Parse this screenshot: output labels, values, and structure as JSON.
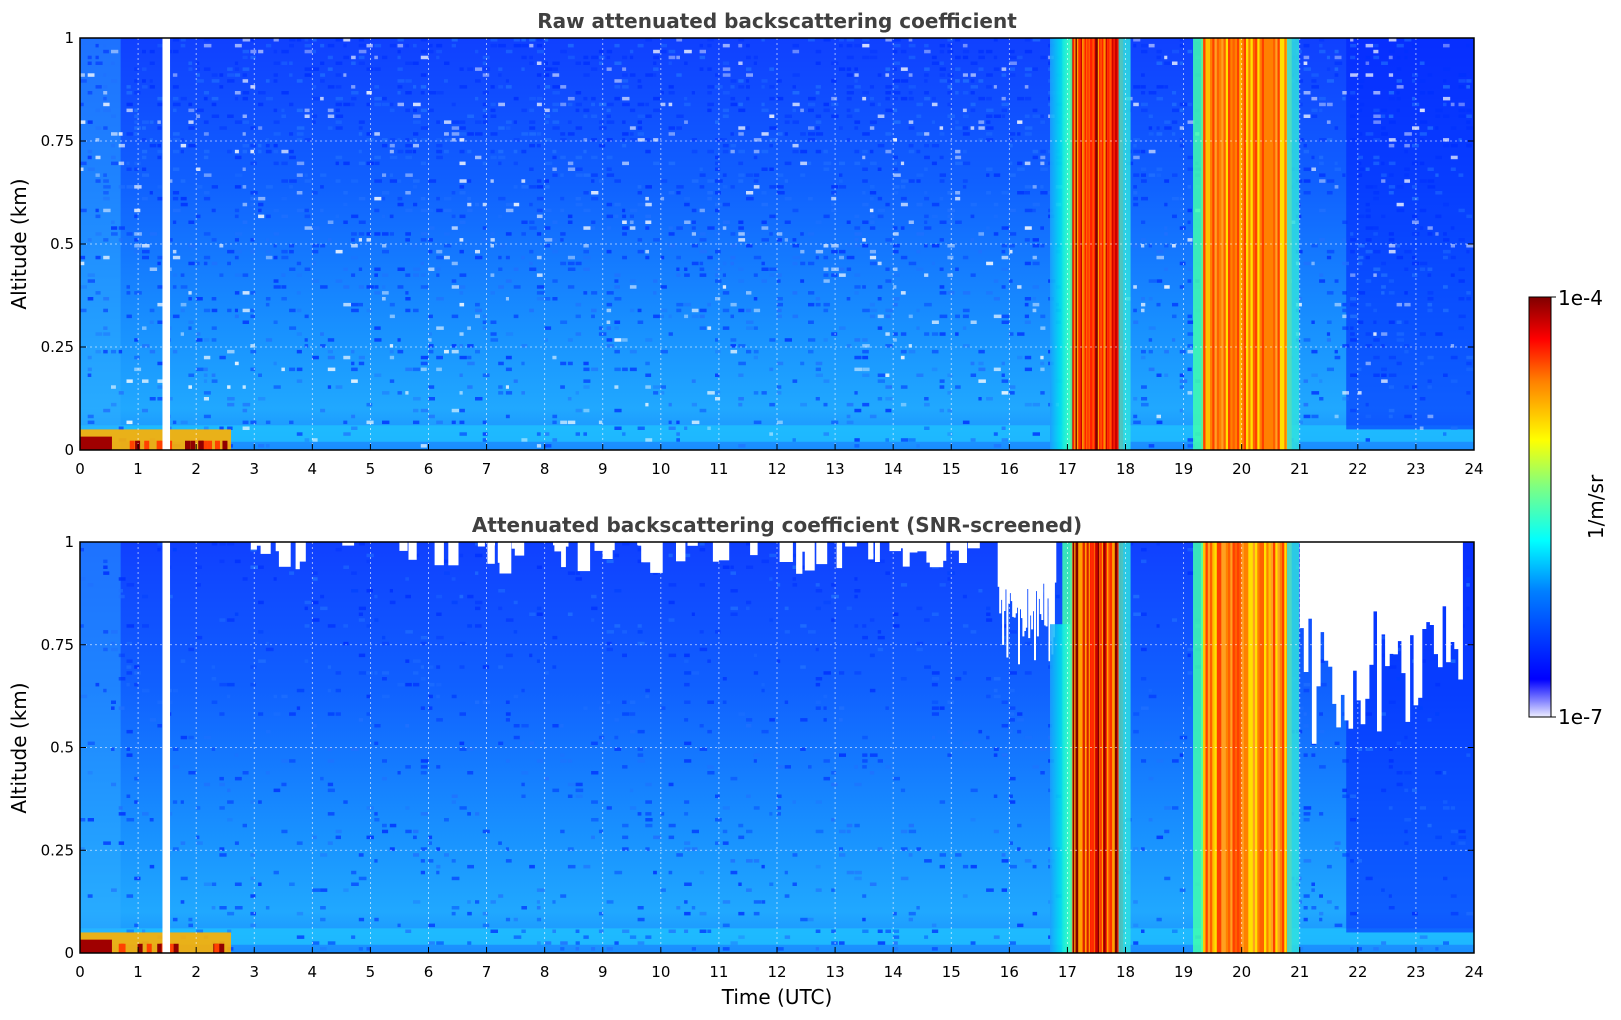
{
  "chart_data": [
    {
      "type": "heatmap",
      "title": "Raw attenuated backscattering coefficient",
      "xlabel": "",
      "ylabel": "Altitude (km)",
      "xlim": [
        0,
        24
      ],
      "ylim": [
        0,
        1
      ],
      "x_ticks": [
        "0",
        "1",
        "2",
        "3",
        "4",
        "5",
        "6",
        "7",
        "8",
        "9",
        "10",
        "11",
        "12",
        "13",
        "14",
        "15",
        "16",
        "17",
        "18",
        "19",
        "20",
        "21",
        "22",
        "23",
        "24"
      ],
      "y_ticks": [
        "0",
        "0.25",
        "0.5",
        "0.75",
        "1"
      ],
      "grid": true,
      "colormap": "jet",
      "color_scale": "log",
      "screened": false,
      "no_data_time_range": [
        1.42,
        1.55
      ],
      "features": [
        {
          "kind": "surface_layer",
          "x_range": [
            0,
            2.6
          ],
          "y_range": [
            0,
            0.05
          ],
          "level": "high"
        },
        {
          "kind": "cloud",
          "x_range": [
            17.05,
            17.95
          ],
          "y_range": [
            0,
            1
          ],
          "level": "very high"
        },
        {
          "kind": "cloud",
          "x_range": [
            19.3,
            20.85
          ],
          "y_range": [
            0,
            1
          ],
          "level": "high"
        },
        {
          "kind": "boundary_layer_edge",
          "x_range": [
            16.7,
            17.05
          ],
          "y_range": [
            0,
            1
          ],
          "level": "moderate"
        }
      ]
    },
    {
      "type": "heatmap",
      "title": "Attenuated backscattering coefficient (SNR-screened)",
      "xlabel": "Time (UTC)",
      "ylabel": "Altitude (km)",
      "xlim": [
        0,
        24
      ],
      "ylim": [
        0,
        1
      ],
      "x_ticks": [
        "0",
        "1",
        "2",
        "3",
        "4",
        "5",
        "6",
        "7",
        "8",
        "9",
        "10",
        "11",
        "12",
        "13",
        "14",
        "15",
        "16",
        "17",
        "18",
        "19",
        "20",
        "21",
        "22",
        "23",
        "24"
      ],
      "y_ticks": [
        "0",
        "0.25",
        "0.5",
        "0.75",
        "1"
      ],
      "grid": true,
      "colormap": "jet",
      "color_scale": "log",
      "screened": true,
      "no_data_time_range": [
        1.42,
        1.55
      ],
      "features": [
        {
          "kind": "surface_layer",
          "x_range": [
            0,
            2.6
          ],
          "y_range": [
            0,
            0.05
          ],
          "level": "high"
        },
        {
          "kind": "cloud",
          "x_range": [
            17.05,
            17.95
          ],
          "y_range": [
            0,
            1
          ],
          "level": "very high"
        },
        {
          "kind": "cloud",
          "x_range": [
            19.3,
            20.85
          ],
          "y_range": [
            0,
            1
          ],
          "level": "high"
        },
        {
          "kind": "screened_region",
          "x_range": [
            15.8,
            16.8
          ],
          "y_range": [
            0.7,
            1
          ]
        },
        {
          "kind": "screened_region",
          "x_range": [
            21.0,
            23.8
          ],
          "y_range": [
            0.5,
            1
          ]
        }
      ]
    }
  ],
  "colorbar": {
    "label": "1/m/sr",
    "max_label": "1e-4",
    "min_label": "1e-7",
    "range": [
      1e-07,
      0.0001
    ],
    "scale": "log"
  }
}
